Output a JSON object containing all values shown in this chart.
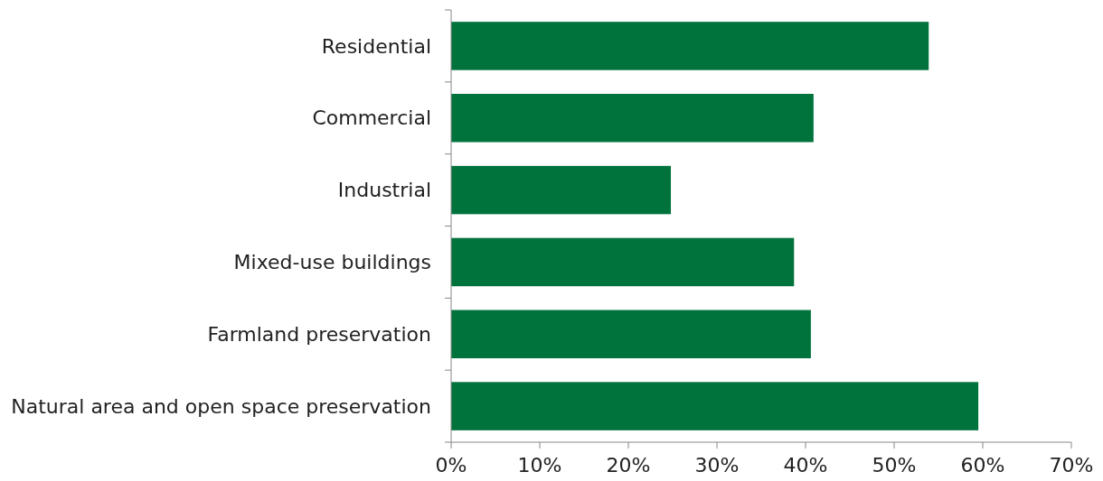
{
  "chart_data": {
    "type": "bar",
    "orientation": "horizontal",
    "categories": [
      "Residential",
      "Commercial",
      "Industrial",
      "Mixed-use buildings",
      "Farmland preservation",
      "Natural area and open space preservation"
    ],
    "values": [
      53.9,
      40.9,
      24.8,
      38.7,
      40.6,
      59.5
    ],
    "color": "#00733c",
    "xlim": [
      0,
      70
    ],
    "xticks": [
      {
        "value": 0,
        "label": "0%"
      },
      {
        "value": 10,
        "label": "10%"
      },
      {
        "value": 20,
        "label": "20%"
      },
      {
        "value": 30,
        "label": "30%"
      },
      {
        "value": 40,
        "label": "40%"
      },
      {
        "value": 50,
        "label": "50%"
      },
      {
        "value": 60,
        "label": "60%"
      },
      {
        "value": 70,
        "label": "70%"
      }
    ],
    "grid": false
  }
}
